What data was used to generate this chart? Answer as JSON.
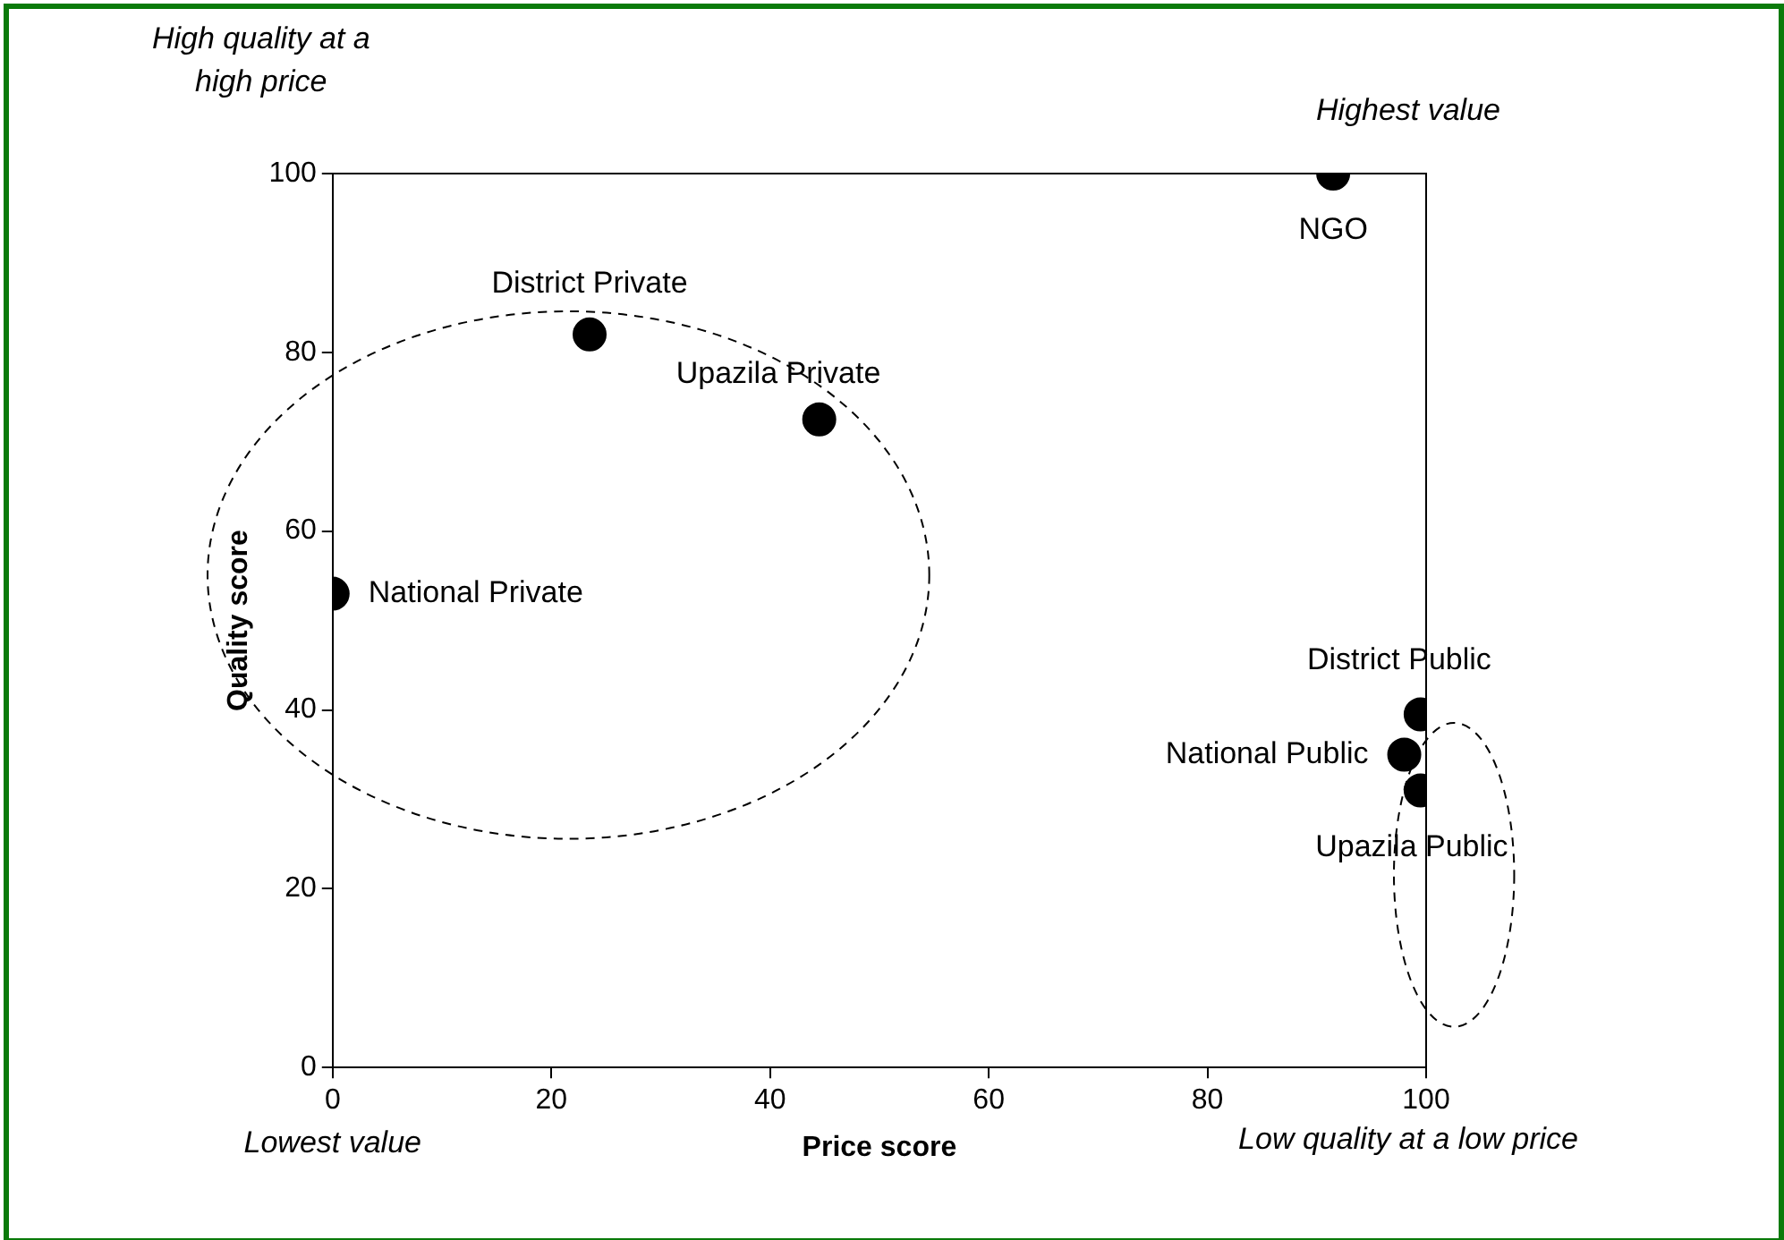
{
  "chart_data": {
    "type": "scatter",
    "xlabel": "Price score",
    "ylabel": "Quality score",
    "x": [
      0,
      23.5,
      44.5,
      91.5,
      99.5,
      98,
      99.5
    ],
    "values": [
      53,
      82,
      72.5,
      100,
      39.5,
      35,
      31
    ],
    "color": "#000000",
    "marker": "circle",
    "grid": false,
    "legend": false,
    "xlim": [
      0,
      100
    ],
    "xticks": [
      0,
      20,
      40,
      60,
      80,
      100
    ],
    "ylim": [
      0,
      100
    ],
    "yticks": [
      0,
      20,
      40,
      60,
      80,
      100
    ],
    "annotations": [
      {
        "text": "National Private",
        "x": 0,
        "y": 53
      },
      {
        "text": "District Private",
        "x": 23.5,
        "y": 82
      },
      {
        "text": "Upazila Private",
        "x": 44.5,
        "y": 72.5
      },
      {
        "text": "NGO",
        "x": 91.5,
        "y": 100
      },
      {
        "text": "District Public",
        "x": 99.5,
        "y": 39.5
      },
      {
        "text": "National Public",
        "x": 98,
        "y": 35
      },
      {
        "text": "Upazila Public",
        "x": 99.5,
        "y": 31
      },
      "High quality at a high price",
      "Highest value",
      "Lowest value",
      "Low quality at a low price"
    ]
  }
}
